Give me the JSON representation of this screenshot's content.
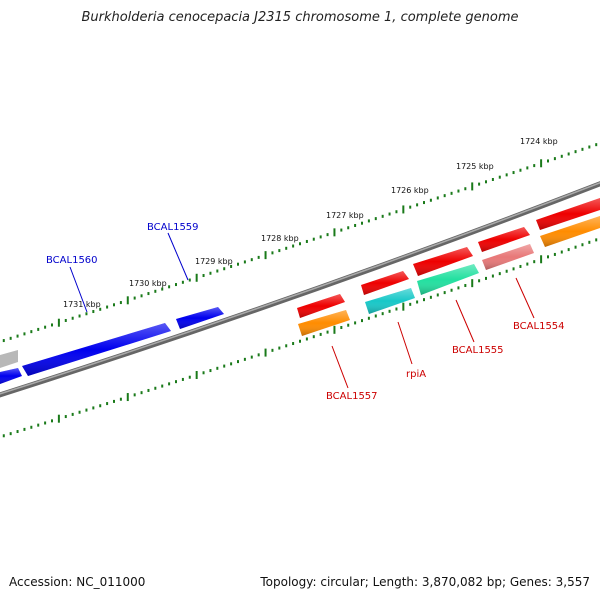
{
  "title": "Burkholderia cenocepacia J2315 chromosome 1, complete genome",
  "footer": {
    "accession": "Accession: NC_011000",
    "summary": "Topology: circular; Length: 3,870,082 bp; Genes: 3,557"
  },
  "ruler": {
    "ticks": [
      {
        "kbp": 1724,
        "label": "1724 kbp"
      },
      {
        "kbp": 1725,
        "label": "1725 kbp"
      },
      {
        "kbp": 1726,
        "label": "1726 kbp"
      },
      {
        "kbp": 1727,
        "label": "1727 kbp"
      },
      {
        "kbp": 1728,
        "label": "1728 kbp"
      },
      {
        "kbp": 1729,
        "label": "1729 kbp"
      },
      {
        "kbp": 1730,
        "label": "1730 kbp"
      },
      {
        "kbp": 1731,
        "label": "1731 kbp"
      }
    ]
  },
  "gene_labels": [
    {
      "name": "BCAL1560",
      "color": "#0000cc"
    },
    {
      "name": "BCAL1559",
      "color": "#0000cc"
    },
    {
      "name": "BCAL1557",
      "color": "#cc0000"
    },
    {
      "name": "rpiA",
      "color": "#cc0000"
    },
    {
      "name": "BCAL1555",
      "color": "#cc0000"
    },
    {
      "name": "BCAL1554",
      "color": "#cc0000"
    }
  ],
  "colors": {
    "backbone": "#777777",
    "tick": "#1a7a1a",
    "reverse_gene": "#0000ee",
    "forward_gene": "#ee0000",
    "orange_gene": "#ff8c00",
    "cyan_gene": "#18c8c8",
    "green_gene": "#22e0a0",
    "pink_gene": "#e87878",
    "gray_gene": "#b8b8b8"
  }
}
